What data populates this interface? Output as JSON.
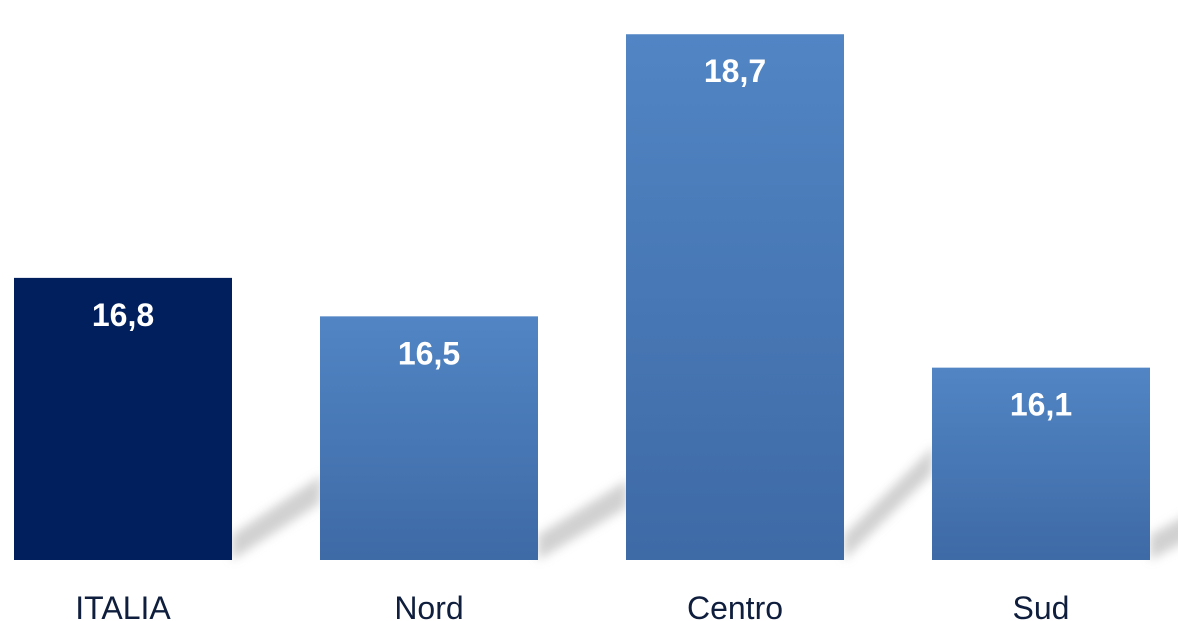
{
  "chart_data": {
    "type": "bar",
    "categories": [
      "ITALIA",
      "Nord",
      "Centro",
      "Sud"
    ],
    "values": [
      16.8,
      16.5,
      18.7,
      16.1
    ],
    "value_labels": [
      "16,8",
      "16,5",
      "18,7",
      "16,1"
    ],
    "title": "",
    "xlabel": "",
    "ylabel": "",
    "ylim": [
      14.6,
      18.85
    ],
    "grid": false,
    "legend": "none",
    "colors": {
      "highlight": "#001f5c",
      "bar_top": "#5185c4",
      "bar_bottom": "#3e6aa6",
      "label_text": "#0f1e3d"
    }
  }
}
